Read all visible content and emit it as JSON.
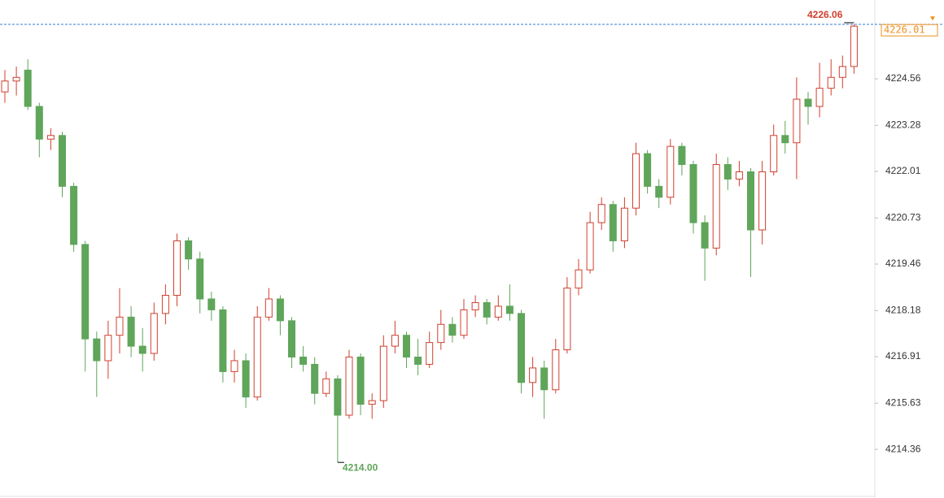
{
  "chart_data": {
    "type": "candlestick",
    "ylim": [
      4213.02,
      4226.73
    ],
    "yticks": [
      4214.36,
      4215.63,
      4216.91,
      4218.18,
      4219.46,
      4220.73,
      4222.01,
      4223.28,
      4224.56
    ],
    "up_color": "#d0402f",
    "down_color": "#5fa55a",
    "last_price_color": "#f0901e",
    "high_line_color": "#3a7bd5",
    "high": 4226.06,
    "low": {
      "value": 4214,
      "label": "4214.00"
    },
    "last_price": 4226.01,
    "candles": [
      [
        4224.2,
        4224.8,
        4223.9,
        4224.5
      ],
      [
        4224.5,
        4224.9,
        4224.1,
        4224.6
      ],
      [
        4224.8,
        4225.1,
        4223.7,
        4223.8
      ],
      [
        4223.8,
        4223.9,
        4222.4,
        4222.9
      ],
      [
        4222.9,
        4223.2,
        4222.6,
        4223.0
      ],
      [
        4223.0,
        4223.1,
        4221.3,
        4221.6
      ],
      [
        4221.6,
        4221.7,
        4219.8,
        4220.0
      ],
      [
        4220.0,
        4220.1,
        4216.5,
        4217.4
      ],
      [
        4217.4,
        4217.6,
        4215.8,
        4216.8
      ],
      [
        4216.8,
        4217.9,
        4216.3,
        4217.5
      ],
      [
        4217.5,
        4218.8,
        4217.0,
        4218.0
      ],
      [
        4218.0,
        4218.3,
        4216.9,
        4217.2
      ],
      [
        4217.2,
        4217.7,
        4216.5,
        4217.0
      ],
      [
        4217.0,
        4218.4,
        4216.8,
        4218.1
      ],
      [
        4218.1,
        4218.9,
        4217.8,
        4218.6
      ],
      [
        4218.6,
        4220.3,
        4218.3,
        4220.1
      ],
      [
        4220.1,
        4220.2,
        4219.3,
        4219.6
      ],
      [
        4219.6,
        4219.8,
        4218.1,
        4218.5
      ],
      [
        4218.5,
        4218.7,
        4217.9,
        4218.2
      ],
      [
        4218.2,
        4218.3,
        4216.2,
        4216.5
      ],
      [
        4216.5,
        4217.1,
        4216.2,
        4216.8
      ],
      [
        4216.8,
        4217.0,
        4215.5,
        4215.8
      ],
      [
        4215.8,
        4218.3,
        4215.7,
        4218.0
      ],
      [
        4218.0,
        4218.8,
        4217.9,
        4218.5
      ],
      [
        4218.5,
        4218.6,
        4217.5,
        4217.9
      ],
      [
        4217.9,
        4218.0,
        4216.6,
        4216.9
      ],
      [
        4216.9,
        4217.2,
        4216.5,
        4216.7
      ],
      [
        4216.7,
        4216.9,
        4215.6,
        4215.9
      ],
      [
        4215.9,
        4216.5,
        4215.8,
        4216.3
      ],
      [
        4216.3,
        4216.4,
        4214.0,
        4215.3
      ],
      [
        4215.3,
        4217.1,
        4215.2,
        4216.9
      ],
      [
        4216.9,
        4217.0,
        4215.3,
        4215.6
      ],
      [
        4215.6,
        4215.9,
        4215.2,
        4215.7
      ],
      [
        4215.7,
        4217.5,
        4215.5,
        4217.2
      ],
      [
        4217.2,
        4217.9,
        4217.0,
        4217.5
      ],
      [
        4217.5,
        4217.6,
        4216.6,
        4216.9
      ],
      [
        4216.9,
        4217.4,
        4216.4,
        4216.7
      ],
      [
        4216.7,
        4217.6,
        4216.6,
        4217.3
      ],
      [
        4217.3,
        4218.2,
        4217.1,
        4217.8
      ],
      [
        4217.8,
        4218.0,
        4217.3,
        4217.5
      ],
      [
        4217.5,
        4218.5,
        4217.4,
        4218.2
      ],
      [
        4218.2,
        4218.6,
        4218.0,
        4218.4
      ],
      [
        4218.4,
        4218.5,
        4217.8,
        4218.0
      ],
      [
        4218.0,
        4218.6,
        4217.9,
        4218.3
      ],
      [
        4218.3,
        4218.9,
        4217.9,
        4218.1
      ],
      [
        4218.1,
        4218.2,
        4215.9,
        4216.2
      ],
      [
        4216.2,
        4216.9,
        4215.8,
        4216.6
      ],
      [
        4216.6,
        4216.8,
        4215.2,
        4216.0
      ],
      [
        4216.0,
        4217.4,
        4215.9,
        4217.1
      ],
      [
        4217.1,
        4219.1,
        4217.0,
        4218.8
      ],
      [
        4218.8,
        4219.6,
        4218.6,
        4219.3
      ],
      [
        4219.3,
        4220.9,
        4219.2,
        4220.6
      ],
      [
        4220.6,
        4221.3,
        4220.4,
        4221.1
      ],
      [
        4221.1,
        4221.2,
        4219.8,
        4220.1
      ],
      [
        4220.1,
        4221.3,
        4219.9,
        4221.0
      ],
      [
        4221.0,
        4222.8,
        4220.8,
        4222.5
      ],
      [
        4222.5,
        4222.6,
        4221.4,
        4221.6
      ],
      [
        4221.6,
        4221.8,
        4221.0,
        4221.3
      ],
      [
        4221.3,
        4222.9,
        4221.1,
        4222.7
      ],
      [
        4222.7,
        4222.8,
        4221.9,
        4222.2
      ],
      [
        4222.2,
        4222.3,
        4220.3,
        4220.6
      ],
      [
        4220.6,
        4220.8,
        4219.0,
        4219.9
      ],
      [
        4219.9,
        4222.5,
        4219.7,
        4222.2
      ],
      [
        4222.2,
        4222.4,
        4221.5,
        4221.8
      ],
      [
        4221.8,
        4222.3,
        4221.6,
        4222.0
      ],
      [
        4222.0,
        4222.1,
        4219.1,
        4220.4
      ],
      [
        4220.4,
        4222.3,
        4220.0,
        4222.0
      ],
      [
        4222.0,
        4223.3,
        4221.9,
        4223.0
      ],
      [
        4223.0,
        4223.4,
        4222.5,
        4222.8
      ],
      [
        4222.8,
        4224.6,
        4221.8,
        4224.0
      ],
      [
        4224.0,
        4224.2,
        4223.3,
        4223.8
      ],
      [
        4223.8,
        4225.0,
        4223.5,
        4224.3
      ],
      [
        4224.3,
        4225.1,
        4224.1,
        4224.6
      ],
      [
        4224.6,
        4225.2,
        4224.3,
        4224.9
      ],
      [
        4224.9,
        4226.06,
        4224.7,
        4226.01
      ]
    ]
  }
}
